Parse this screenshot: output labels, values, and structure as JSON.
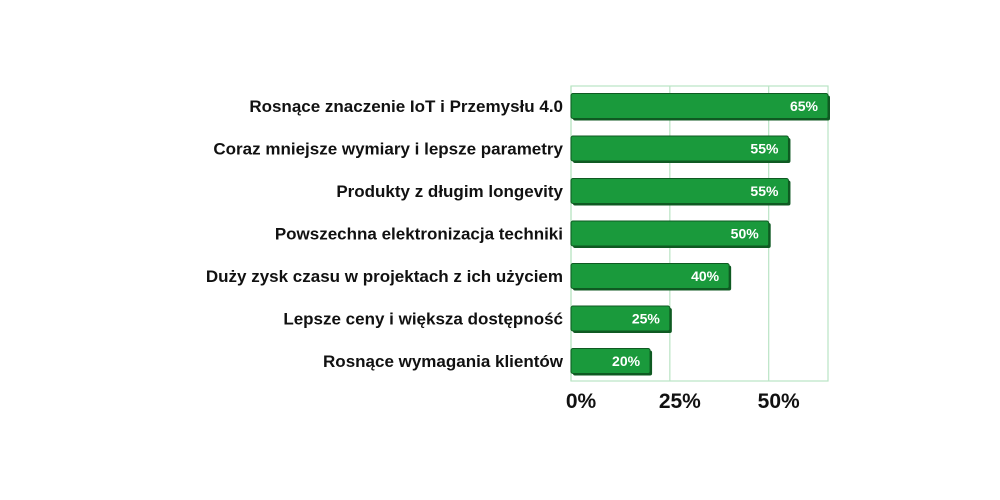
{
  "chart_data": {
    "type": "bar",
    "orientation": "horizontal",
    "categories": [
      "Rosnące znaczenie IoT i Przemysłu 4.0",
      "Coraz mniejsze wymiary i lepsze parametry",
      "Produkty z długim longevity",
      "Powszechna elektronizacja techniki",
      "Duży zysk czasu w projektach z ich użyciem",
      "Lepsze ceny i większa dostępność",
      "Rosnące wymagania klientów"
    ],
    "values": [
      65,
      55,
      55,
      50,
      40,
      25,
      20
    ],
    "value_labels": [
      "65%",
      "55%",
      "55%",
      "50%",
      "40%",
      "25%",
      "20%"
    ],
    "x_ticks": [
      0,
      25,
      50
    ],
    "x_tick_labels": [
      "0%",
      "25%",
      "50%"
    ],
    "xlim": [
      0,
      65
    ],
    "grid": true,
    "bar_color": "#1a9a3c",
    "bar_edge_color": "#0f5a22",
    "grid_color": "#b9e4c4",
    "title": "",
    "xlabel": "",
    "ylabel": ""
  }
}
